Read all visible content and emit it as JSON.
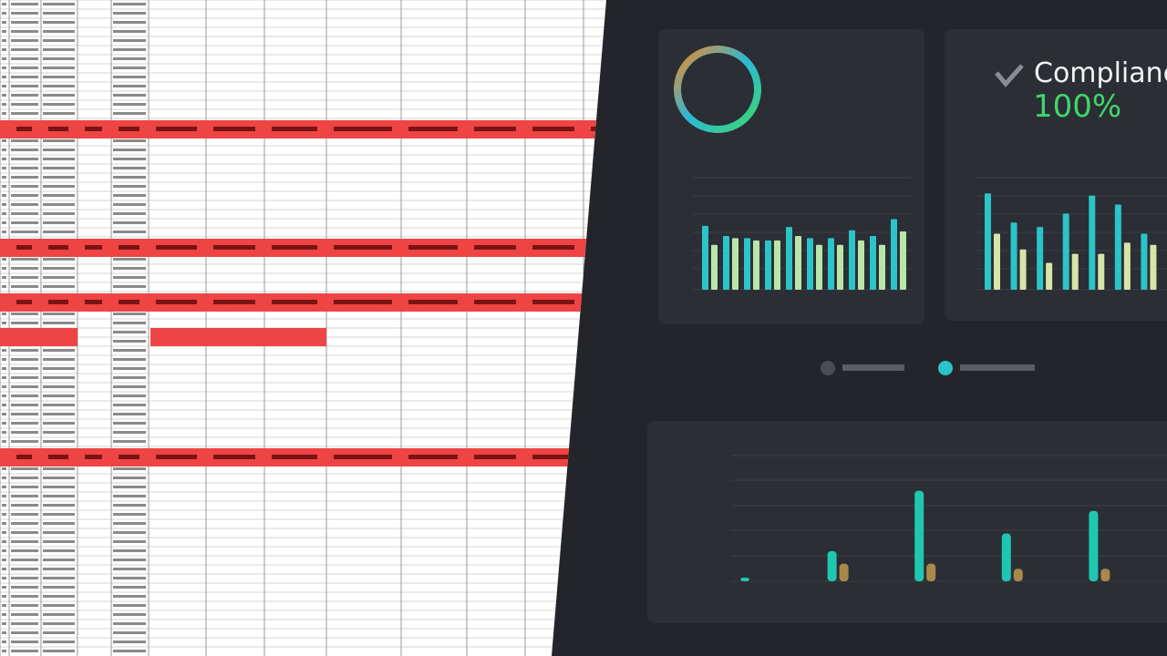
{
  "compliance_card": {
    "title": "Compliance",
    "value": "100%"
  },
  "chart_data": [
    {
      "type": "bar",
      "ylim": [
        0,
        100
      ],
      "series": [
        {
          "color": "#2bc4c9",
          "values": [
            57,
            48,
            46,
            44,
            56,
            46,
            46,
            53,
            48,
            63
          ]
        },
        {
          "color": "#b9e6a8",
          "values": [
            40,
            46,
            44,
            44,
            48,
            40,
            40,
            44,
            40,
            52
          ]
        }
      ]
    },
    {
      "type": "bar",
      "ylim": [
        0,
        100
      ],
      "series": [
        {
          "color": "#2bc4c9",
          "values": [
            86,
            60,
            56,
            68,
            84,
            76,
            50
          ]
        },
        {
          "color": "#d8e4a8",
          "values": [
            50,
            36,
            24,
            32,
            32,
            42,
            40
          ]
        }
      ]
    },
    {
      "type": "bar",
      "ylim": [
        0,
        100
      ],
      "series": [
        {
          "color": "#1fc7b0",
          "values": [
            3,
            24,
            72,
            38,
            56
          ]
        },
        {
          "color": "#a8894a",
          "values": [
            0,
            14,
            14,
            10,
            10
          ]
        }
      ]
    }
  ]
}
